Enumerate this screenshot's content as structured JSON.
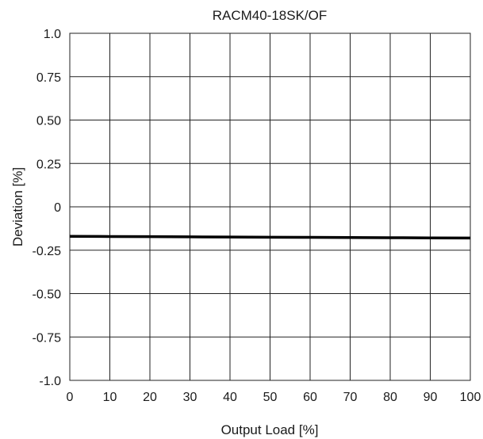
{
  "chart_data": {
    "type": "line",
    "title": "RACM40-18SK/OF",
    "xlabel": "Output Load [%]",
    "ylabel": "Deviation [%]",
    "xlim": [
      0,
      100
    ],
    "ylim": [
      -1.0,
      1.0
    ],
    "grid": true,
    "x_ticks": [
      0,
      10,
      20,
      30,
      40,
      50,
      60,
      70,
      80,
      90,
      100
    ],
    "x_tick_labels": [
      "0",
      "10",
      "20",
      "30",
      "40",
      "50",
      "60",
      "70",
      "80",
      "90",
      "100"
    ],
    "y_ticks": [
      1.0,
      0.75,
      0.5,
      0.25,
      0,
      -0.25,
      -0.5,
      -0.75,
      -1.0
    ],
    "y_tick_labels": [
      "1.0",
      "0.75",
      "0.50",
      "0.25",
      "0",
      "-0.25",
      "-0.50",
      "-0.75",
      "-1.0"
    ],
    "series": [
      {
        "x": [
          0,
          10,
          20,
          30,
          40,
          50,
          60,
          70,
          80,
          90,
          100
        ],
        "y": [
          -0.17,
          -0.171,
          -0.172,
          -0.173,
          -0.174,
          -0.175,
          -0.176,
          -0.177,
          -0.178,
          -0.179,
          -0.18
        ],
        "color": "#000000"
      }
    ]
  }
}
